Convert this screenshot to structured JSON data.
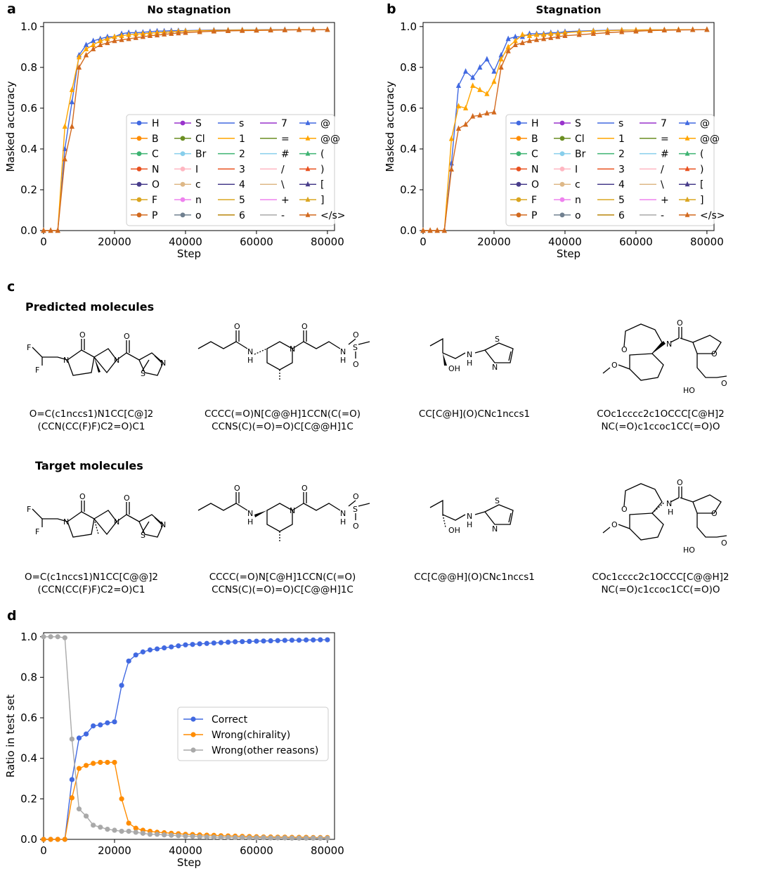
{
  "panels": {
    "a": {
      "letter": "a",
      "title": "No stagnation"
    },
    "b": {
      "letter": "b",
      "title": "Stagnation"
    },
    "c": {
      "letter": "c",
      "predicted_title": "Predicted molecules",
      "target_title": "Target molecules"
    },
    "d": {
      "letter": "d"
    }
  },
  "token_legend": {
    "columns": [
      [
        {
          "label": "H",
          "color": "#4169e1",
          "marker": "circle"
        },
        {
          "label": "B",
          "color": "#ff8c00",
          "marker": "circle"
        },
        {
          "label": "C",
          "color": "#3cb371",
          "marker": "circle"
        },
        {
          "label": "N",
          "color": "#e8501e",
          "marker": "circle"
        },
        {
          "label": "O",
          "color": "#483d8b",
          "marker": "circle"
        },
        {
          "label": "F",
          "color": "#daa520",
          "marker": "circle"
        },
        {
          "label": "P",
          "color": "#d2691e",
          "marker": "circle"
        }
      ],
      [
        {
          "label": "S",
          "color": "#9932cc",
          "marker": "circle"
        },
        {
          "label": "Cl",
          "color": "#6b8e23",
          "marker": "circle"
        },
        {
          "label": "Br",
          "color": "#87ceeb",
          "marker": "circle"
        },
        {
          "label": "I",
          "color": "#ffb6c1",
          "marker": "circle"
        },
        {
          "label": "c",
          "color": "#deb887",
          "marker": "circle"
        },
        {
          "label": "n",
          "color": "#ee82ee",
          "marker": "circle"
        },
        {
          "label": "o",
          "color": "#708090",
          "marker": "circle"
        }
      ],
      [
        {
          "label": "s",
          "color": "#4169e1",
          "marker": "none"
        },
        {
          "label": "1",
          "color": "#ffa500",
          "marker": "none"
        },
        {
          "label": "2",
          "color": "#3cb371",
          "marker": "none"
        },
        {
          "label": "3",
          "color": "#e8501e",
          "marker": "none"
        },
        {
          "label": "4",
          "color": "#483d8b",
          "marker": "none"
        },
        {
          "label": "5",
          "color": "#daa520",
          "marker": "none"
        },
        {
          "label": "6",
          "color": "#b8860b",
          "marker": "none"
        }
      ],
      [
        {
          "label": "7",
          "color": "#9932cc",
          "marker": "none"
        },
        {
          "label": "=",
          "color": "#6b8e23",
          "marker": "none"
        },
        {
          "label": "#",
          "color": "#87ceeb",
          "marker": "none"
        },
        {
          "label": "/",
          "color": "#ffb6c1",
          "marker": "none"
        },
        {
          "label": "\\",
          "color": "#deb887",
          "marker": "none"
        },
        {
          "label": "+",
          "color": "#ee82ee",
          "marker": "none"
        },
        {
          "label": "-",
          "color": "#a9a9a9",
          "marker": "none"
        }
      ],
      [
        {
          "label": "@",
          "color": "#4169e1",
          "marker": "triangle"
        },
        {
          "label": "@@",
          "color": "#ffa500",
          "marker": "triangle"
        },
        {
          "label": "(",
          "color": "#3cb371",
          "marker": "triangle"
        },
        {
          "label": ")",
          "color": "#e8501e",
          "marker": "triangle"
        },
        {
          "label": "[",
          "color": "#483d8b",
          "marker": "triangle"
        },
        {
          "label": "]",
          "color": "#daa520",
          "marker": "triangle"
        },
        {
          "label": "</s>",
          "color": "#d2691e",
          "marker": "triangle"
        }
      ]
    ]
  },
  "chart_data": [
    {
      "type": "line",
      "panel": "a",
      "title": "No stagnation",
      "xlabel": "Step",
      "ylabel": "Masked accuracy",
      "xlim": [
        0,
        82000
      ],
      "ylim": [
        0,
        1.02
      ],
      "xticks": [
        "0",
        "20000",
        "40000",
        "60000",
        "80000"
      ],
      "yticks": [
        "0.0",
        "0.2",
        "0.4",
        "0.6",
        "0.8",
        "1.0"
      ],
      "legend_position": "lower-right",
      "series": [
        {
          "name": "@",
          "color": "#4169e1",
          "marker": "triangle",
          "x": [
            0,
            2000,
            4000,
            6000,
            8000,
            10000,
            12000,
            14000,
            16000,
            18000,
            20000,
            22000,
            24000,
            26000,
            28000,
            30000,
            32000,
            34000,
            36000,
            38000,
            40000,
            44000,
            48000,
            52000,
            56000,
            60000,
            64000,
            68000,
            72000,
            76000,
            80000
          ],
          "y": [
            0,
            0,
            0,
            0.4,
            0.63,
            0.86,
            0.91,
            0.93,
            0.94,
            0.95,
            0.95,
            0.965,
            0.97,
            0.97,
            0.972,
            0.975,
            0.978,
            0.978,
            0.98,
            0.98,
            0.98,
            0.982,
            0.983,
            0.983,
            0.984,
            0.984,
            0.985,
            0.985,
            0.985,
            0.985,
            0.985
          ]
        },
        {
          "name": "@@",
          "color": "#ffa500",
          "marker": "triangle",
          "x": [
            0,
            2000,
            4000,
            6000,
            8000,
            10000,
            12000,
            14000,
            16000,
            18000,
            20000,
            22000,
            24000,
            26000,
            28000,
            30000,
            32000,
            34000,
            36000,
            38000,
            40000,
            44000,
            48000,
            52000,
            56000,
            60000,
            64000,
            68000,
            72000,
            76000,
            80000
          ],
          "y": [
            0,
            0,
            0,
            0.51,
            0.69,
            0.85,
            0.89,
            0.91,
            0.93,
            0.94,
            0.95,
            0.955,
            0.96,
            0.963,
            0.965,
            0.968,
            0.97,
            0.972,
            0.974,
            0.976,
            0.978,
            0.98,
            0.981,
            0.982,
            0.983,
            0.983,
            0.984,
            0.984,
            0.985,
            0.985,
            0.985
          ]
        },
        {
          "name": "</s>",
          "color": "#d2691e",
          "marker": "triangle",
          "x": [
            0,
            2000,
            4000,
            6000,
            8000,
            10000,
            12000,
            14000,
            16000,
            18000,
            20000,
            22000,
            24000,
            26000,
            28000,
            30000,
            32000,
            34000,
            36000,
            38000,
            40000,
            44000,
            48000,
            52000,
            56000,
            60000,
            64000,
            68000,
            72000,
            76000,
            80000
          ],
          "y": [
            0,
            0,
            0,
            0.35,
            0.51,
            0.8,
            0.86,
            0.89,
            0.91,
            0.92,
            0.93,
            0.935,
            0.94,
            0.945,
            0.95,
            0.955,
            0.958,
            0.962,
            0.965,
            0.968,
            0.97,
            0.974,
            0.977,
            0.979,
            0.98,
            0.981,
            0.982,
            0.983,
            0.984,
            0.984,
            0.985
          ]
        }
      ]
    },
    {
      "type": "line",
      "panel": "b",
      "title": "Stagnation",
      "xlabel": "Step",
      "ylabel": "Masked accuracy",
      "xlim": [
        0,
        82000
      ],
      "ylim": [
        0,
        1.02
      ],
      "xticks": [
        "0",
        "20000",
        "40000",
        "60000",
        "80000"
      ],
      "yticks": [
        "0.0",
        "0.2",
        "0.4",
        "0.6",
        "0.8",
        "1.0"
      ],
      "legend_position": "lower-right",
      "series": [
        {
          "name": "@",
          "color": "#4169e1",
          "marker": "triangle",
          "x": [
            0,
            2000,
            4000,
            6000,
            8000,
            10000,
            12000,
            14000,
            16000,
            18000,
            20000,
            22000,
            24000,
            26000,
            28000,
            30000,
            32000,
            34000,
            36000,
            38000,
            40000,
            44000,
            48000,
            52000,
            56000,
            60000,
            64000,
            68000,
            72000,
            76000,
            80000
          ],
          "y": [
            0,
            0,
            0,
            0,
            0.33,
            0.71,
            0.78,
            0.75,
            0.8,
            0.84,
            0.78,
            0.86,
            0.94,
            0.95,
            0.95,
            0.965,
            0.965,
            0.965,
            0.97,
            0.97,
            0.975,
            0.978,
            0.98,
            0.982,
            0.983,
            0.983,
            0.984,
            0.984,
            0.985,
            0.985,
            0.985
          ]
        },
        {
          "name": "@@",
          "color": "#ffa500",
          "marker": "triangle",
          "x": [
            0,
            2000,
            4000,
            6000,
            8000,
            10000,
            12000,
            14000,
            16000,
            18000,
            20000,
            22000,
            24000,
            26000,
            28000,
            30000,
            32000,
            34000,
            36000,
            38000,
            40000,
            44000,
            48000,
            52000,
            56000,
            60000,
            64000,
            68000,
            72000,
            76000,
            80000
          ],
          "y": [
            0,
            0,
            0,
            0,
            0.45,
            0.61,
            0.6,
            0.71,
            0.69,
            0.67,
            0.73,
            0.84,
            0.9,
            0.93,
            0.96,
            0.955,
            0.96,
            0.96,
            0.965,
            0.965,
            0.97,
            0.975,
            0.978,
            0.98,
            0.982,
            0.983,
            0.984,
            0.984,
            0.985,
            0.985,
            0.985
          ]
        },
        {
          "name": "</s>",
          "color": "#d2691e",
          "marker": "triangle",
          "x": [
            0,
            2000,
            4000,
            6000,
            8000,
            10000,
            12000,
            14000,
            16000,
            18000,
            20000,
            22000,
            24000,
            26000,
            28000,
            30000,
            32000,
            34000,
            36000,
            38000,
            40000,
            44000,
            48000,
            52000,
            56000,
            60000,
            64000,
            68000,
            72000,
            76000,
            80000
          ],
          "y": [
            0,
            0,
            0,
            0,
            0.3,
            0.5,
            0.52,
            0.56,
            0.565,
            0.575,
            0.58,
            0.8,
            0.88,
            0.91,
            0.92,
            0.93,
            0.935,
            0.94,
            0.945,
            0.95,
            0.955,
            0.96,
            0.965,
            0.97,
            0.974,
            0.977,
            0.98,
            0.982,
            0.983,
            0.984,
            0.985
          ]
        }
      ]
    },
    {
      "type": "line",
      "panel": "d",
      "xlabel": "Step",
      "ylabel": "Ratio in test set",
      "xlim": [
        0,
        82000
      ],
      "ylim": [
        0,
        1.02
      ],
      "xticks": [
        "0",
        "20000",
        "40000",
        "60000",
        "80000"
      ],
      "yticks": [
        "0.0",
        "0.2",
        "0.4",
        "0.6",
        "0.8",
        "1.0"
      ],
      "legend_position": "center-right",
      "series": [
        {
          "name": "Correct",
          "color": "#4169e1",
          "marker": "circle",
          "x": [
            0,
            2000,
            4000,
            6000,
            8000,
            10000,
            12000,
            14000,
            16000,
            18000,
            20000,
            22000,
            24000,
            26000,
            28000,
            30000,
            32000,
            34000,
            36000,
            38000,
            40000,
            42000,
            44000,
            46000,
            48000,
            50000,
            52000,
            54000,
            56000,
            58000,
            60000,
            62000,
            64000,
            66000,
            68000,
            70000,
            72000,
            74000,
            76000,
            78000,
            80000
          ],
          "y": [
            0,
            0,
            0,
            0,
            0.295,
            0.5,
            0.52,
            0.56,
            0.565,
            0.575,
            0.58,
            0.76,
            0.88,
            0.91,
            0.925,
            0.935,
            0.94,
            0.945,
            0.95,
            0.955,
            0.96,
            0.962,
            0.965,
            0.967,
            0.969,
            0.971,
            0.973,
            0.975,
            0.976,
            0.977,
            0.978,
            0.979,
            0.98,
            0.981,
            0.982,
            0.983,
            0.983,
            0.984,
            0.984,
            0.985,
            0.985
          ]
        },
        {
          "name": "Wrong(chirality)",
          "color": "#ff8c00",
          "marker": "circle",
          "x": [
            0,
            2000,
            4000,
            6000,
            8000,
            10000,
            12000,
            14000,
            16000,
            18000,
            20000,
            22000,
            24000,
            26000,
            28000,
            30000,
            32000,
            34000,
            36000,
            38000,
            40000,
            42000,
            44000,
            46000,
            48000,
            50000,
            52000,
            54000,
            56000,
            58000,
            60000,
            62000,
            64000,
            66000,
            68000,
            70000,
            72000,
            74000,
            76000,
            78000,
            80000
          ],
          "y": [
            0,
            0,
            0,
            0,
            0.205,
            0.35,
            0.365,
            0.375,
            0.38,
            0.38,
            0.38,
            0.2,
            0.08,
            0.055,
            0.045,
            0.04,
            0.035,
            0.033,
            0.03,
            0.028,
            0.025,
            0.024,
            0.022,
            0.021,
            0.02,
            0.018,
            0.017,
            0.016,
            0.015,
            0.014,
            0.013,
            0.012,
            0.012,
            0.011,
            0.011,
            0.01,
            0.01,
            0.01,
            0.009,
            0.009,
            0.009
          ]
        },
        {
          "name": "Wrong(other reasons)",
          "color": "#a9a9a9",
          "marker": "circle",
          "x": [
            0,
            2000,
            4000,
            6000,
            8000,
            10000,
            12000,
            14000,
            16000,
            18000,
            20000,
            22000,
            24000,
            26000,
            28000,
            30000,
            32000,
            34000,
            36000,
            38000,
            40000,
            42000,
            44000,
            46000,
            48000,
            50000,
            52000,
            54000,
            56000,
            58000,
            60000,
            62000,
            64000,
            66000,
            68000,
            70000,
            72000,
            74000,
            76000,
            78000,
            80000
          ],
          "y": [
            1.0,
            1.0,
            1.0,
            0.995,
            0.495,
            0.15,
            0.115,
            0.07,
            0.06,
            0.05,
            0.045,
            0.04,
            0.04,
            0.035,
            0.03,
            0.025,
            0.025,
            0.022,
            0.02,
            0.018,
            0.016,
            0.015,
            0.013,
            0.012,
            0.011,
            0.01,
            0.01,
            0.009,
            0.009,
            0.008,
            0.008,
            0.008,
            0.007,
            0.007,
            0.007,
            0.006,
            0.006,
            0.006,
            0.006,
            0.006,
            0.006
          ]
        }
      ]
    }
  ],
  "molecules": {
    "predicted": [
      {
        "line1": "O=C(c1nccs1)N1CC[C@]2",
        "line2": "(CCN(CC(F)F)C2=O)C1"
      },
      {
        "line1": "CCCC(=O)N[C@@H]1CCN(C(=O)",
        "line2": "CCNS(C)(=O)=O)C[C@@H]1C"
      },
      {
        "line1": "CC[C@H](O)CNc1nccs1",
        "line2": ""
      },
      {
        "line1": "COc1cccc2c1OCCC[C@H]2",
        "line2": "NC(=O)c1ccoc1CC(=O)O"
      }
    ],
    "target": [
      {
        "line1": "O=C(c1nccs1)N1CC[C@@]2",
        "line2": "(CCN(CC(F)F)C2=O)C1"
      },
      {
        "line1": "CCCC(=O)N[C@H]1CCN(C(=O)",
        "line2": "CCNS(C)(=O)=O)C[C@@H]1C"
      },
      {
        "line1": "CC[C@@H](O)CNc1nccs1",
        "line2": ""
      },
      {
        "line1": "COc1cccc2c1OCCC[C@@H]2",
        "line2": "NC(=O)c1ccoc1CC(=O)O"
      }
    ]
  },
  "atom_labels": {
    "F": "F",
    "N": "N",
    "O": "O",
    "S": "S",
    "NH": "N",
    "H": "H",
    "OH": "OH",
    "HO": "HO"
  }
}
